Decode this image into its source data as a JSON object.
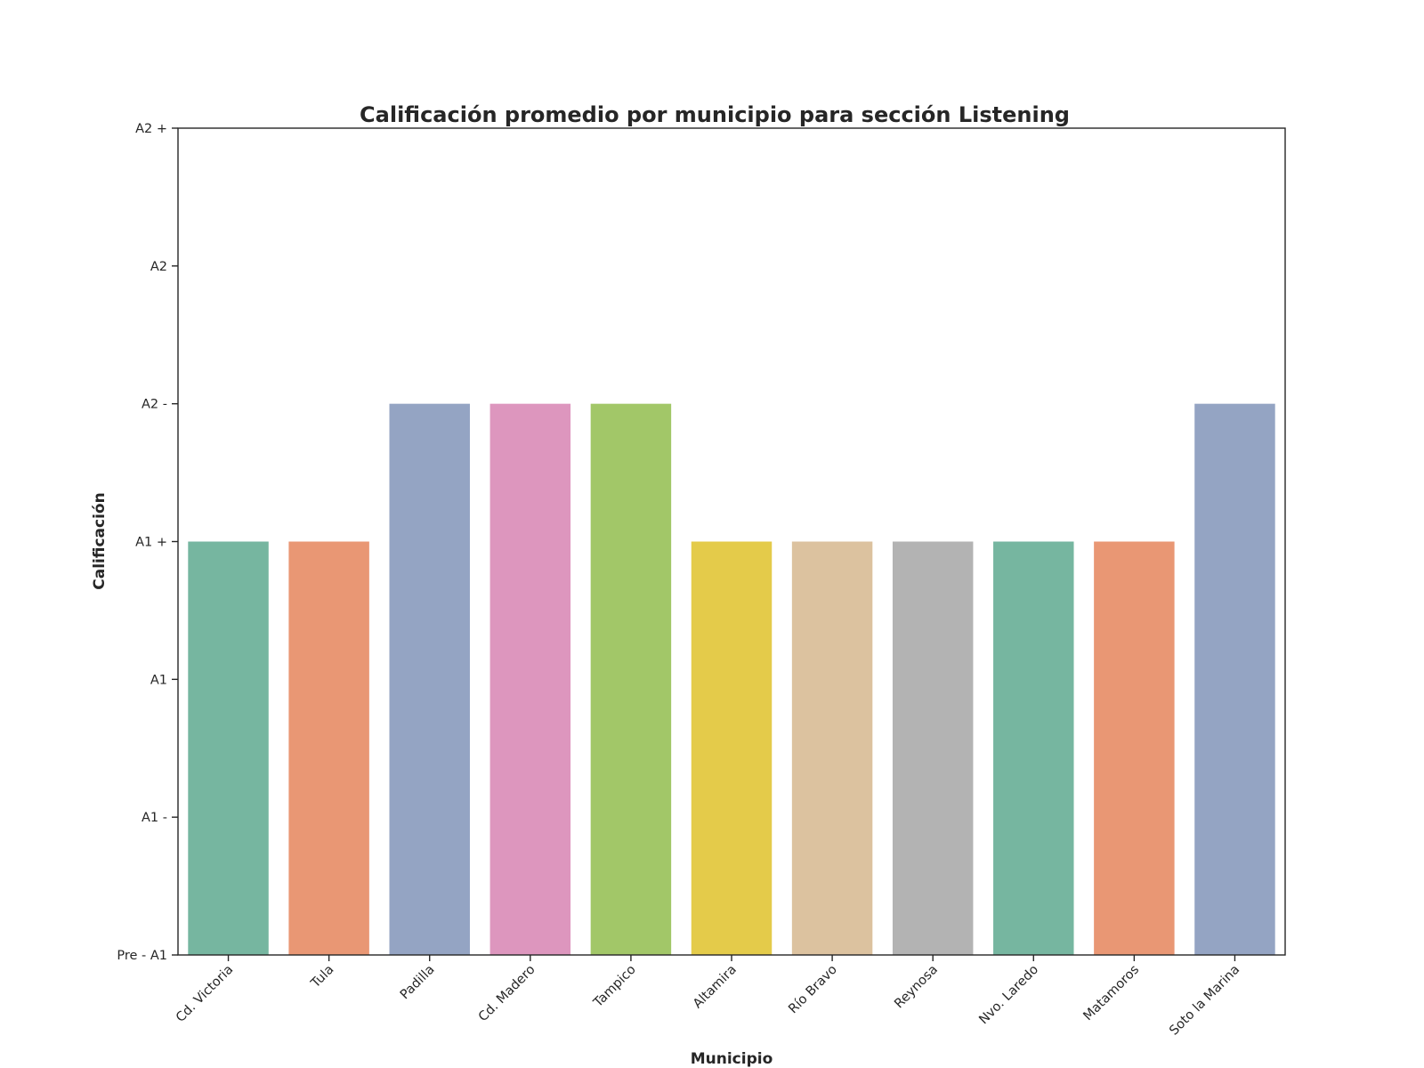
{
  "chart_data": {
    "type": "bar",
    "title": "Calificación promedio por municipio para sección Listening",
    "xlabel": "Municipio",
    "ylabel": "Calificación",
    "categories": [
      "Cd. Victoria",
      "Tula",
      "Padilla",
      "Cd. Madero",
      "Tampico",
      "Altamira",
      "Río Bravo",
      "Reynosa",
      "Nvo. Laredo",
      "Matamoros",
      "Soto la Marina"
    ],
    "values": [
      3,
      3,
      4,
      4,
      4,
      3,
      3,
      3,
      3,
      3,
      4
    ],
    "y_tick_values": [
      0,
      1,
      2,
      3,
      4,
      5,
      6
    ],
    "y_tick_labels": [
      "Pre - A1",
      "A1 -",
      "A1",
      "A1 +",
      "A2 -",
      "A2",
      "A2 +"
    ],
    "ylim": [
      0,
      6
    ],
    "grid": false,
    "legend": "none",
    "colors": [
      "#76b6a0",
      "#e99774",
      "#94a4c3",
      "#dd96be",
      "#a2c768",
      "#e4cb4a",
      "#dcc29f",
      "#b3b3b3",
      "#76b6a0",
      "#e99774",
      "#94a4c3"
    ]
  }
}
